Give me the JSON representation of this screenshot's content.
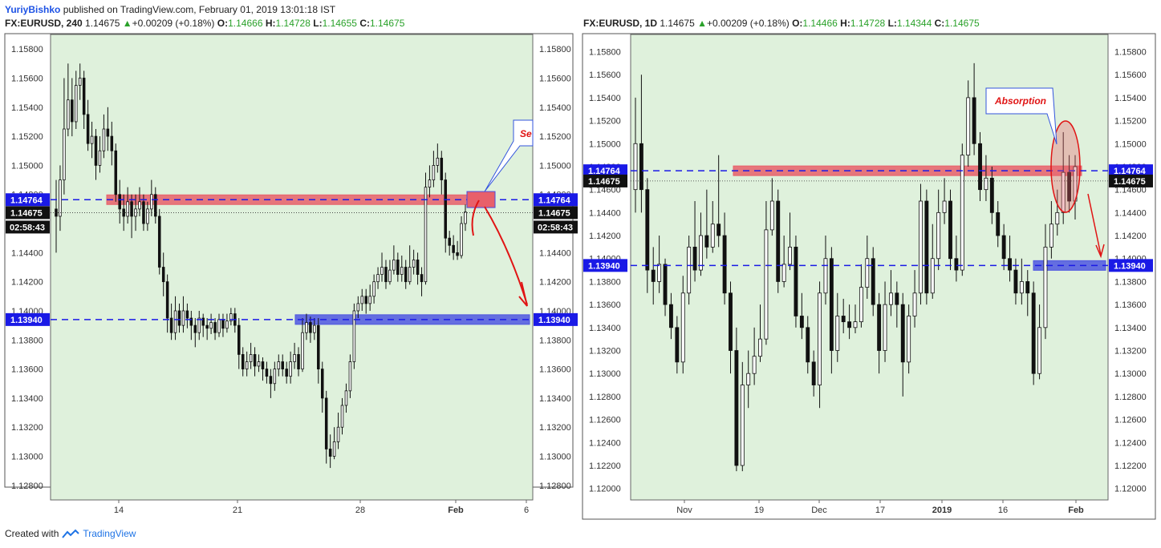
{
  "publisher_line": {
    "author": "YuriyBishko",
    "rest": " published on TradingView.com, February 01, 2019 13:01:18 IST"
  },
  "footer": {
    "created_with": "Created with",
    "brand": "TradingView"
  },
  "colors": {
    "plot_bg": "#dff1dc",
    "support_line": "#1a1ae6",
    "resistance_zone": "#e8606a",
    "support_zone": "#4f57e0",
    "annotation": "#e01414",
    "price_label_bg": "#1a1ae6",
    "current_label_bg": "#111111"
  },
  "charts": [
    {
      "header": {
        "symbol": "FX:EURUSD, 240",
        "last": "1.14675",
        "change": "+0.00209 (+0.18%)",
        "o": "1.14666",
        "h": "1.14728",
        "l": "1.14655",
        "c": "1.14675"
      },
      "callout_text": "Se",
      "countdown": "02:58:43"
    },
    {
      "header": {
        "symbol": "FX:EURUSD, 1D",
        "last": "1.14675",
        "change": "+0.00209 (+0.18%)",
        "o": "1.14466",
        "h": "1.14728",
        "l": "1.14344",
        "c": "1.14675"
      },
      "callout_text": "Absorption"
    }
  ],
  "chart_data": [
    {
      "type": "candlestick",
      "title": "FX:EURUSD, 240",
      "ylim": [
        1.127,
        1.159
      ],
      "yticks": [
        "1.15800",
        "1.15600",
        "1.15400",
        "1.15200",
        "1.15000",
        "1.14800",
        "1.14600",
        "1.14400",
        "1.14200",
        "1.14000",
        "1.13800",
        "1.13600",
        "1.13400",
        "1.13200",
        "1.13000",
        "1.12800"
      ],
      "xticks": [
        "14",
        "21",
        "28",
        "Feb",
        "6"
      ],
      "price_lines": [
        {
          "label": "1.14764",
          "value": 1.14764,
          "kind": "resistance"
        },
        {
          "label": "1.13940",
          "value": 1.1394,
          "kind": "support"
        }
      ],
      "current_price": {
        "label": "1.14675",
        "value": 1.14675
      },
      "zones": [
        {
          "value": 1.14764,
          "kind": "resistance"
        },
        {
          "value": 1.1394,
          "kind": "support"
        }
      ],
      "grid": false,
      "candles": [
        [
          1.147,
          1.1465,
          1.149,
          1.144
        ],
        [
          1.1465,
          1.149,
          1.15,
          1.1455
        ],
        [
          1.149,
          1.1525,
          1.156,
          1.148
        ],
        [
          1.1525,
          1.1545,
          1.157,
          1.152
        ],
        [
          1.1545,
          1.153,
          1.156,
          1.152
        ],
        [
          1.153,
          1.1555,
          1.1565,
          1.1525
        ],
        [
          1.1555,
          1.156,
          1.157,
          1.1545
        ],
        [
          1.156,
          1.1535,
          1.1565,
          1.1525
        ],
        [
          1.1535,
          1.1515,
          1.1545,
          1.151
        ],
        [
          1.1515,
          1.152,
          1.153,
          1.1505
        ],
        [
          1.152,
          1.15,
          1.1525,
          1.149
        ],
        [
          1.15,
          1.151,
          1.152,
          1.1495
        ],
        [
          1.151,
          1.1525,
          1.1535,
          1.1505
        ],
        [
          1.1525,
          1.152,
          1.154,
          1.151
        ],
        [
          1.152,
          1.151,
          1.153,
          1.15
        ],
        [
          1.151,
          1.148,
          1.1515,
          1.1475
        ],
        [
          1.148,
          1.147,
          1.149,
          1.146
        ],
        [
          1.147,
          1.1465,
          1.148,
          1.1455
        ],
        [
          1.1465,
          1.1475,
          1.1485,
          1.146
        ],
        [
          1.1475,
          1.1465,
          1.148,
          1.145
        ],
        [
          1.1465,
          1.147,
          1.148,
          1.1455
        ],
        [
          1.147,
          1.1475,
          1.1485,
          1.1465
        ],
        [
          1.1475,
          1.146,
          1.148,
          1.1455
        ],
        [
          1.146,
          1.147,
          1.1475,
          1.1455
        ],
        [
          1.147,
          1.148,
          1.149,
          1.1465
        ],
        [
          1.148,
          1.1465,
          1.1485,
          1.146
        ],
        [
          1.1465,
          1.143,
          1.147,
          1.1425
        ],
        [
          1.143,
          1.142,
          1.144,
          1.141
        ],
        [
          1.142,
          1.1395,
          1.1425,
          1.1385
        ],
        [
          1.1395,
          1.1385,
          1.1405,
          1.138
        ],
        [
          1.1385,
          1.14,
          1.141,
          1.138
        ],
        [
          1.14,
          1.139,
          1.1405,
          1.1385
        ],
        [
          1.139,
          1.14,
          1.141,
          1.1385
        ],
        [
          1.14,
          1.1395,
          1.1405,
          1.1388
        ],
        [
          1.1395,
          1.139,
          1.14,
          1.138
        ],
        [
          1.139,
          1.1385,
          1.1395,
          1.1375
        ],
        [
          1.1385,
          1.1395,
          1.14,
          1.138
        ],
        [
          1.1395,
          1.139,
          1.1398,
          1.1382
        ],
        [
          1.139,
          1.1388,
          1.1395,
          1.138
        ],
        [
          1.1388,
          1.1392,
          1.1398,
          1.1384
        ],
        [
          1.1392,
          1.1385,
          1.1395,
          1.138
        ],
        [
          1.1385,
          1.1394,
          1.1398,
          1.1382
        ],
        [
          1.1394,
          1.1388,
          1.1398,
          1.1382
        ],
        [
          1.1388,
          1.1393,
          1.1398,
          1.1385
        ],
        [
          1.1393,
          1.1398,
          1.1402,
          1.139
        ],
        [
          1.1398,
          1.139,
          1.1402,
          1.1385
        ],
        [
          1.139,
          1.137,
          1.1395,
          1.136
        ],
        [
          1.137,
          1.136,
          1.1375,
          1.1355
        ],
        [
          1.136,
          1.1365,
          1.1372,
          1.1355
        ],
        [
          1.1365,
          1.137,
          1.1378,
          1.136
        ],
        [
          1.137,
          1.1362,
          1.1375,
          1.1355
        ],
        [
          1.1362,
          1.1365,
          1.137,
          1.1358
        ],
        [
          1.1365,
          1.136,
          1.1368,
          1.1352
        ],
        [
          1.136,
          1.1355,
          1.1365,
          1.135
        ],
        [
          1.1355,
          1.135,
          1.136,
          1.134
        ],
        [
          1.135,
          1.136,
          1.1365,
          1.1345
        ],
        [
          1.136,
          1.1365,
          1.137,
          1.1355
        ],
        [
          1.1365,
          1.136,
          1.137,
          1.1355
        ],
        [
          1.136,
          1.1355,
          1.1365,
          1.135
        ],
        [
          1.1355,
          1.1365,
          1.1372,
          1.135
        ],
        [
          1.1365,
          1.137,
          1.1378,
          1.136
        ],
        [
          1.137,
          1.136,
          1.1375,
          1.1355
        ],
        [
          1.136,
          1.1385,
          1.1395,
          1.1358
        ],
        [
          1.1385,
          1.1392,
          1.1398,
          1.138
        ],
        [
          1.1392,
          1.1385,
          1.1396,
          1.1378
        ],
        [
          1.1385,
          1.139,
          1.1395,
          1.138
        ],
        [
          1.139,
          1.136,
          1.1395,
          1.135
        ],
        [
          1.136,
          1.134,
          1.1365,
          1.133
        ],
        [
          1.134,
          1.1305,
          1.1345,
          1.1295
        ],
        [
          1.1305,
          1.13,
          1.1315,
          1.1292
        ],
        [
          1.13,
          1.131,
          1.132,
          1.1298
        ],
        [
          1.131,
          1.132,
          1.133,
          1.1305
        ],
        [
          1.132,
          1.1335,
          1.134,
          1.1315
        ],
        [
          1.1335,
          1.1345,
          1.135,
          1.133
        ],
        [
          1.1345,
          1.1365,
          1.137,
          1.134
        ],
        [
          1.1365,
          1.14,
          1.1405,
          1.136
        ],
        [
          1.14,
          1.1405,
          1.141,
          1.1395
        ],
        [
          1.1405,
          1.141,
          1.1415,
          1.14
        ],
        [
          1.141,
          1.1405,
          1.1415,
          1.1398
        ],
        [
          1.1405,
          1.141,
          1.1418,
          1.14
        ],
        [
          1.141,
          1.142,
          1.1425,
          1.1405
        ],
        [
          1.142,
          1.1425,
          1.143,
          1.1415
        ],
        [
          1.1425,
          1.143,
          1.144,
          1.142
        ],
        [
          1.143,
          1.142,
          1.1435,
          1.1415
        ],
        [
          1.142,
          1.1428,
          1.1435,
          1.1418
        ],
        [
          1.1428,
          1.1435,
          1.1445,
          1.1425
        ],
        [
          1.1435,
          1.1425,
          1.144,
          1.142
        ],
        [
          1.1425,
          1.143,
          1.1438,
          1.142
        ],
        [
          1.143,
          1.142,
          1.1435,
          1.1415
        ],
        [
          1.142,
          1.143,
          1.1445,
          1.1418
        ],
        [
          1.143,
          1.1435,
          1.1442,
          1.1425
        ],
        [
          1.1435,
          1.1425,
          1.144,
          1.1418
        ],
        [
          1.1425,
          1.142,
          1.143,
          1.141
        ],
        [
          1.142,
          1.1485,
          1.1495,
          1.1418
        ],
        [
          1.1485,
          1.149,
          1.15,
          1.1478
        ],
        [
          1.149,
          1.15,
          1.151,
          1.1485
        ],
        [
          1.15,
          1.1505,
          1.1515,
          1.1495
        ],
        [
          1.1505,
          1.149,
          1.151,
          1.148
        ],
        [
          1.149,
          1.145,
          1.1495,
          1.144
        ],
        [
          1.145,
          1.1445,
          1.1455,
          1.1438
        ],
        [
          1.1445,
          1.144,
          1.1452,
          1.1435
        ],
        [
          1.144,
          1.1438,
          1.1448,
          1.1435
        ],
        [
          1.1438,
          1.146,
          1.1465,
          1.1436
        ],
        [
          1.146,
          1.1468,
          1.1473,
          1.1455
        ]
      ]
    },
    {
      "type": "candlestick",
      "title": "FX:EURUSD, 1D",
      "ylim": [
        1.119,
        1.1595
      ],
      "yticks": [
        "1.15800",
        "1.15600",
        "1.15400",
        "1.15200",
        "1.15000",
        "1.14800",
        "1.14600",
        "1.14400",
        "1.14200",
        "1.14000",
        "1.13800",
        "1.13600",
        "1.13400",
        "1.13200",
        "1.13000",
        "1.12800",
        "1.12600",
        "1.12400",
        "1.12200",
        "1.12000"
      ],
      "xticks": [
        "Nov",
        "19",
        "Dec",
        "17",
        "2019",
        "16",
        "Feb"
      ],
      "price_lines": [
        {
          "label": "1.14764",
          "value": 1.14764,
          "kind": "resistance"
        },
        {
          "label": "1.13940",
          "value": 1.1394,
          "kind": "support"
        }
      ],
      "current_price": {
        "label": "1.14675",
        "value": 1.14675
      },
      "zones": [
        {
          "value": 1.14764,
          "kind": "resistance"
        },
        {
          "value": 1.1394,
          "kind": "support"
        }
      ],
      "grid": false,
      "candles": [
        [
          1.146,
          1.15,
          1.154,
          1.144
        ],
        [
          1.15,
          1.146,
          1.156,
          1.144
        ],
        [
          1.146,
          1.139,
          1.147,
          1.137
        ],
        [
          1.139,
          1.138,
          1.141,
          1.136
        ],
        [
          1.138,
          1.1395,
          1.142,
          1.137
        ],
        [
          1.1395,
          1.136,
          1.14,
          1.135
        ],
        [
          1.136,
          1.134,
          1.137,
          1.133
        ],
        [
          1.134,
          1.131,
          1.135,
          1.13
        ],
        [
          1.131,
          1.137,
          1.1385,
          1.13
        ],
        [
          1.137,
          1.141,
          1.142,
          1.136
        ],
        [
          1.141,
          1.139,
          1.145,
          1.138
        ],
        [
          1.139,
          1.142,
          1.144,
          1.1385
        ],
        [
          1.142,
          1.141,
          1.146,
          1.14
        ],
        [
          1.141,
          1.143,
          1.145,
          1.1405
        ],
        [
          1.143,
          1.142,
          1.149,
          1.141
        ],
        [
          1.142,
          1.137,
          1.144,
          1.136
        ],
        [
          1.137,
          1.132,
          1.138,
          1.13
        ],
        [
          1.132,
          1.122,
          1.134,
          1.1215
        ],
        [
          1.122,
          1.129,
          1.131,
          1.1215
        ],
        [
          1.129,
          1.13,
          1.132,
          1.127
        ],
        [
          1.13,
          1.1315,
          1.134,
          1.129
        ],
        [
          1.1315,
          1.133,
          1.136,
          1.131
        ],
        [
          1.133,
          1.1425,
          1.145,
          1.1325
        ],
        [
          1.1425,
          1.145,
          1.147,
          1.142
        ],
        [
          1.145,
          1.138,
          1.146,
          1.137
        ],
        [
          1.138,
          1.1395,
          1.142,
          1.1375
        ],
        [
          1.1395,
          1.141,
          1.144,
          1.139
        ],
        [
          1.141,
          1.135,
          1.142,
          1.134
        ],
        [
          1.135,
          1.134,
          1.137,
          1.133
        ],
        [
          1.134,
          1.131,
          1.135,
          1.13
        ],
        [
          1.131,
          1.129,
          1.132,
          1.128
        ],
        [
          1.129,
          1.137,
          1.138,
          1.127
        ],
        [
          1.137,
          1.14,
          1.142,
          1.136
        ],
        [
          1.14,
          1.132,
          1.141,
          1.13
        ],
        [
          1.132,
          1.135,
          1.137,
          1.131
        ],
        [
          1.135,
          1.1345,
          1.1365,
          1.1335
        ],
        [
          1.1345,
          1.134,
          1.136,
          1.133
        ],
        [
          1.134,
          1.1345,
          1.136,
          1.1335
        ],
        [
          1.1345,
          1.1375,
          1.1395,
          1.134
        ],
        [
          1.1375,
          1.14,
          1.142,
          1.1365
        ],
        [
          1.14,
          1.136,
          1.141,
          1.135
        ],
        [
          1.136,
          1.132,
          1.137,
          1.13
        ],
        [
          1.132,
          1.136,
          1.138,
          1.131
        ],
        [
          1.136,
          1.137,
          1.139,
          1.135
        ],
        [
          1.137,
          1.136,
          1.138,
          1.134
        ],
        [
          1.136,
          1.131,
          1.137,
          1.128
        ],
        [
          1.131,
          1.135,
          1.136,
          1.13
        ],
        [
          1.135,
          1.137,
          1.139,
          1.134
        ],
        [
          1.137,
          1.145,
          1.1465,
          1.136
        ],
        [
          1.145,
          1.137,
          1.146,
          1.136
        ],
        [
          1.137,
          1.14,
          1.143,
          1.1365
        ],
        [
          1.14,
          1.144,
          1.146,
          1.139
        ],
        [
          1.144,
          1.145,
          1.147,
          1.143
        ],
        [
          1.145,
          1.14,
          1.146,
          1.139
        ],
        [
          1.14,
          1.139,
          1.142,
          1.138
        ],
        [
          1.139,
          1.149,
          1.15,
          1.1385
        ],
        [
          1.149,
          1.154,
          1.1555,
          1.148
        ],
        [
          1.154,
          1.15,
          1.157,
          1.149
        ],
        [
          1.15,
          1.146,
          1.151,
          1.145
        ],
        [
          1.146,
          1.147,
          1.149,
          1.145
        ],
        [
          1.147,
          1.144,
          1.148,
          1.143
        ],
        [
          1.144,
          1.142,
          1.145,
          1.141
        ],
        [
          1.142,
          1.14,
          1.143,
          1.139
        ],
        [
          1.14,
          1.139,
          1.142,
          1.138
        ],
        [
          1.139,
          1.137,
          1.14,
          1.136
        ],
        [
          1.137,
          1.138,
          1.14,
          1.136
        ],
        [
          1.138,
          1.137,
          1.139,
          1.135
        ],
        [
          1.137,
          1.13,
          1.138,
          1.129
        ],
        [
          1.13,
          1.134,
          1.136,
          1.1295
        ],
        [
          1.134,
          1.141,
          1.143,
          1.133
        ],
        [
          1.141,
          1.143,
          1.145,
          1.14
        ],
        [
          1.143,
          1.144,
          1.146,
          1.142
        ],
        [
          1.144,
          1.1475,
          1.151,
          1.143
        ],
        [
          1.1475,
          1.145,
          1.149,
          1.144
        ],
        [
          1.145,
          1.148,
          1.149,
          1.1434
        ]
      ]
    }
  ]
}
